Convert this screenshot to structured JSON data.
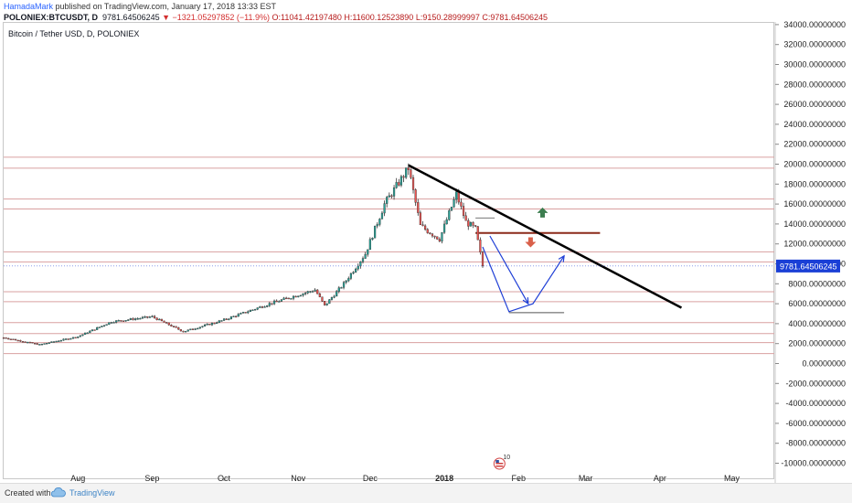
{
  "header": {
    "author": "HamadaMark",
    "published": " published on TradingView.com, January 17, 2018 13:33 EST",
    "symbol": "POLONIEX:BTCUSDT, D",
    "last": "9781.64506245",
    "change": "▼ −1321.05297852 (−11.9%)",
    "open": "O:11041.42197480",
    "high": "H:11600.12523890",
    "low": "L:9150.28999997",
    "close": "C:9781.64506245"
  },
  "chart_title": "Bitcoin / Tether USD, D, POLONIEX",
  "footer": {
    "created": "Created with",
    "brand": "TradingView"
  },
  "colors": {
    "up": "#26a69a",
    "down": "#ef5350",
    "hline": "#d9a0a0",
    "trend": "#000000",
    "projection": "#1f3fd6",
    "resistance": "#8b2a1a",
    "price_label_bg": "#1a3fd6",
    "arrow_up": "#3c7d4f",
    "arrow_down": "#d9604a"
  },
  "icons": {
    "footer_logo": "tradingview-cloud-icon",
    "event_marker": "us-flag-event-icon"
  },
  "chart_data": {
    "type": "candlestick",
    "title": "Bitcoin / Tether USD, D, POLONIEX",
    "xlabel": "",
    "ylabel": "",
    "x_ticks": [
      "Aug",
      "Sep",
      "Oct",
      "Nov",
      "Dec",
      "2018",
      "Feb",
      "Mar",
      "Apr",
      "May"
    ],
    "x_tick_dates": [
      "2017-08-01",
      "2017-09-01",
      "2017-10-01",
      "2017-11-01",
      "2017-12-01",
      "2018-01-01",
      "2018-02-01",
      "2018-03-01",
      "2018-04-01",
      "2018-05-01"
    ],
    "xlim": [
      "2017-07-01",
      "2018-05-12"
    ],
    "y_ticks": [
      "34000.00000000",
      "32000.00000000",
      "30000.00000000",
      "28000.00000000",
      "26000.00000000",
      "24000.00000000",
      "22000.00000000",
      "20000.00000000",
      "18000.00000000",
      "16000.00000000",
      "14000.00000000",
      "12000.00000000",
      "10000.00000000",
      "8000.00000000",
      "6000.00000000",
      "4000.00000000",
      "2000.00000000",
      "0.00000000",
      "-2000.00000000",
      "-4000.00000000",
      "-6000.00000000",
      "-8000.00000000",
      "-10000.00000000"
    ],
    "ylim": [
      -11000,
      35000
    ],
    "grid": false,
    "price_label": "9781.64506245",
    "price_close": 9781.65,
    "price_anchors": [
      [
        "2017-07-01",
        2600
      ],
      [
        "2017-07-16",
        1900
      ],
      [
        "2017-08-01",
        2700
      ],
      [
        "2017-08-15",
        4200
      ],
      [
        "2017-09-01",
        4700
      ],
      [
        "2017-09-14",
        3200
      ],
      [
        "2017-09-30",
        4300
      ],
      [
        "2017-10-20",
        6000
      ],
      [
        "2017-11-08",
        7400
      ],
      [
        "2017-11-12",
        5800
      ],
      [
        "2017-11-20",
        8000
      ],
      [
        "2017-11-29",
        11000
      ],
      [
        "2017-12-07",
        16000
      ],
      [
        "2017-12-17",
        19600
      ],
      [
        "2017-12-22",
        13800
      ],
      [
        "2017-12-30",
        12500
      ],
      [
        "2018-01-06",
        17000
      ],
      [
        "2018-01-10",
        14200
      ],
      [
        "2018-01-14",
        13500
      ],
      [
        "2018-01-16",
        11000
      ],
      [
        "2018-01-17",
        9782
      ]
    ],
    "horizontal_levels": [
      20700,
      19600,
      16500,
      15500,
      11200,
      10200,
      7200,
      6200,
      4100,
      3000,
      2100,
      1000
    ],
    "trendline": [
      [
        "2017-12-17",
        19900
      ],
      [
        "2018-04-10",
        5600
      ]
    ],
    "resistance_segments": [
      {
        "x": [
          "2018-01-14",
          "2018-03-07"
        ],
        "y": 13100
      },
      {
        "x": [
          "2018-01-14",
          "2018-01-22"
        ],
        "y": 14600
      }
    ],
    "support_segment": {
      "x": [
        "2018-01-28",
        "2018-02-20"
      ],
      "y": 5100
    },
    "projection_path": [
      [
        "2018-01-17",
        11700
      ],
      [
        "2018-01-28",
        5200
      ],
      [
        "2018-02-07",
        6000
      ],
      [
        "2018-02-20",
        10800
      ]
    ],
    "projection_path_2": [
      [
        "2018-01-20",
        12800
      ],
      [
        "2018-02-05",
        6000
      ]
    ],
    "arrow_up_at": [
      "2018-02-11",
      15100
    ],
    "arrow_down_at": [
      "2018-02-06",
      12200
    ],
    "event_marker_at": "2018-01-24",
    "event_marker_label": "10"
  }
}
